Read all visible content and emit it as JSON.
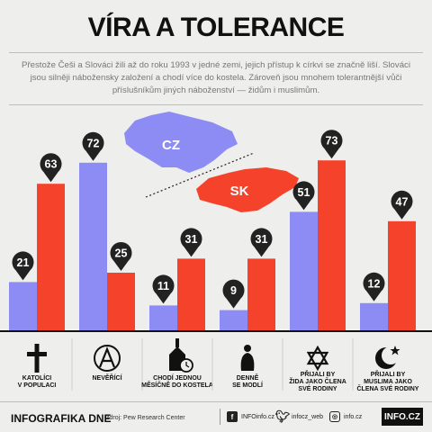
{
  "page": {
    "title": "VÍRA A TOLERANCE",
    "intro": "Přestože Češi a Slováci žili až do roku 1993 v jedné zemi, jejich přístup k církvi se značně liší. Slováci jsou silněji nábožensky založení a chodí více do kostela. Zároveň jsou mnohem tolerantnější vůči příslušníkům jiných náboženství — židům i muslimům."
  },
  "colors": {
    "cz": "#8c8cf4",
    "sk": "#f5432b",
    "pin": "#222222"
  },
  "map_labels": {
    "cz": "CZ",
    "sk": "SK"
  },
  "icons": [
    "cross-icon",
    "atheism-icon",
    "church-clock-icon",
    "praying-person-icon",
    "star-of-david-icon",
    "crescent-star-icon"
  ],
  "chart_data": {
    "type": "bar",
    "categories": [
      "KATOLÍCI\nV POPULACI",
      "NEVĚŘÍCÍ",
      "CHODÍ JEDNOU\nMĚSÍČNĚ DO KOSTELA",
      "DENNĚ\nSE MODLÍ",
      "PŘIJALI BY\nŽIDA JAKO ČLENA\nSVÉ RODINY",
      "PŘIJALI BY\nMUSLIMA JAKO\nČLENA SVÉ RODINY"
    ],
    "series": [
      {
        "name": "CZ",
        "values": [
          21,
          72,
          11,
          9,
          51,
          12
        ]
      },
      {
        "name": "SK",
        "values": [
          63,
          25,
          31,
          31,
          73,
          47
        ]
      }
    ],
    "ylim": [
      0,
      100
    ],
    "grid": false,
    "legend": "map-labels"
  },
  "footer": {
    "title": "INFOGRAFIKA DNE",
    "source": "zdroj: Pew Research Center",
    "facebook": "INFOinfo.cz",
    "twitter": "infocz_web",
    "instagram": "info.cz",
    "brand": "INFO.CZ"
  }
}
